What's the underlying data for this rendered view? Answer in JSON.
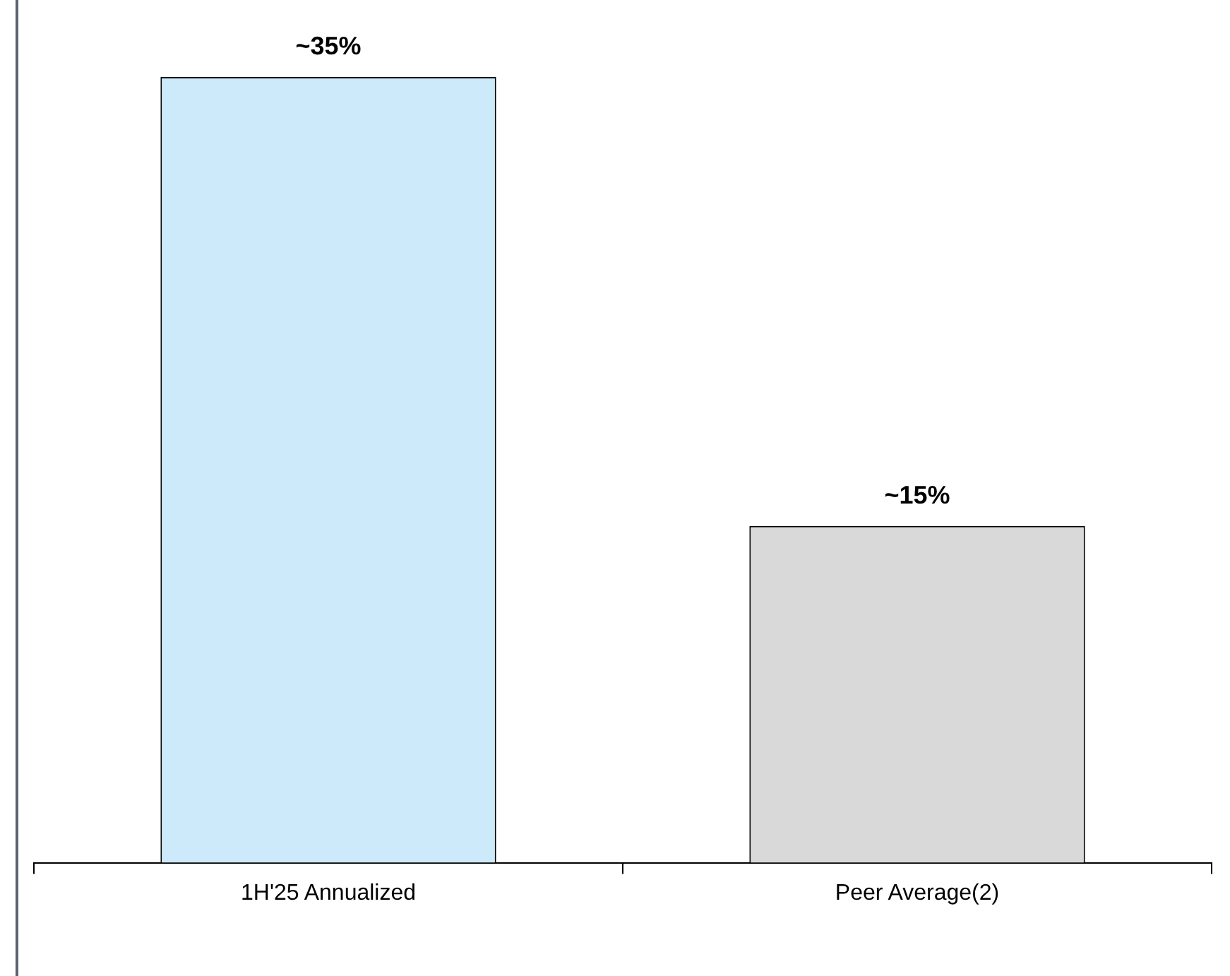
{
  "chart_data": {
    "type": "bar",
    "categories": [
      "1H'25 Annualized",
      "Peer Average(2)"
    ],
    "values": [
      35,
      15
    ],
    "colors": [
      "#cceaf9",
      "#d9d9d9"
    ],
    "value_labels": [
      "~35%",
      "~15%"
    ],
    "grid": false,
    "legend": false
  }
}
